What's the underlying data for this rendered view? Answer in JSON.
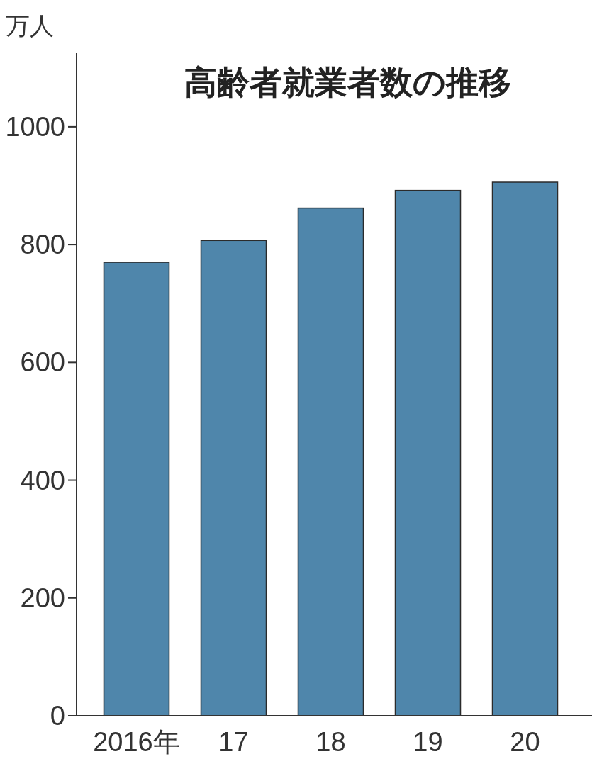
{
  "chart_data": {
    "type": "bar",
    "title": "高齢者就業者数の推移",
    "ylabel": "万人",
    "categories": [
      "2016年",
      "17",
      "18",
      "19",
      "20"
    ],
    "values": [
      770,
      807,
      862,
      892,
      906
    ],
    "color": "#4f86ab",
    "ylim": [
      0,
      1125
    ],
    "yticks": [
      0,
      200,
      400,
      600,
      800,
      1000
    ],
    "grid": false
  }
}
